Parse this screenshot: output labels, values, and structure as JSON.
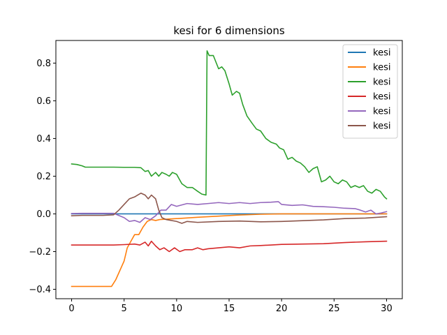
{
  "chart_data": {
    "type": "line",
    "title": "kesi for 6 dimensions",
    "xlabel": "",
    "ylabel": "",
    "xlim": [
      -1.5,
      31.5
    ],
    "ylim": [
      -0.45,
      0.92
    ],
    "xticks": [
      0,
      5,
      10,
      15,
      20,
      25,
      30
    ],
    "xtick_labels": [
      "0",
      "5",
      "10",
      "15",
      "20",
      "25",
      "30"
    ],
    "yticks": [
      -0.4,
      -0.2,
      0.0,
      0.2,
      0.4,
      0.6,
      0.8
    ],
    "ytick_labels": [
      "−0.4",
      "−0.2",
      "0.0",
      "0.2",
      "0.4",
      "0.6",
      "0.8"
    ],
    "grid": false,
    "legend_position": "top-right",
    "series": [
      {
        "name": "kesi",
        "color": "#1f77b4",
        "points": [
          [
            0,
            0.0
          ],
          [
            5,
            0.0
          ],
          [
            10,
            0.0
          ],
          [
            15,
            0.0
          ],
          [
            20,
            0.0
          ],
          [
            25,
            0.0
          ],
          [
            30,
            0.0
          ]
        ]
      },
      {
        "name": "kesi",
        "color": "#ff7f0e",
        "points": [
          [
            0,
            -0.385
          ],
          [
            1,
            -0.385
          ],
          [
            2,
            -0.385
          ],
          [
            3,
            -0.385
          ],
          [
            3.8,
            -0.385
          ],
          [
            4.2,
            -0.35
          ],
          [
            4.6,
            -0.3
          ],
          [
            5.0,
            -0.25
          ],
          [
            5.3,
            -0.18
          ],
          [
            5.7,
            -0.14
          ],
          [
            6.0,
            -0.11
          ],
          [
            6.4,
            -0.11
          ],
          [
            6.8,
            -0.07
          ],
          [
            7.2,
            -0.04
          ],
          [
            7.6,
            -0.03
          ],
          [
            8.0,
            -0.035
          ],
          [
            8.4,
            -0.03
          ],
          [
            9.0,
            -0.028
          ],
          [
            10,
            -0.025
          ],
          [
            12,
            -0.018
          ],
          [
            14,
            -0.012
          ],
          [
            16,
            -0.006
          ],
          [
            18,
            -0.002
          ],
          [
            20,
            0.0
          ],
          [
            22,
            0.0
          ],
          [
            25,
            0.0
          ],
          [
            30,
            0.0
          ]
        ]
      },
      {
        "name": "kesi",
        "color": "#2ca02c",
        "points": [
          [
            0,
            0.265
          ],
          [
            0.5,
            0.262
          ],
          [
            1,
            0.255
          ],
          [
            1.3,
            0.248
          ],
          [
            2,
            0.248
          ],
          [
            3,
            0.248
          ],
          [
            4,
            0.248
          ],
          [
            5,
            0.247
          ],
          [
            6,
            0.247
          ],
          [
            6.6,
            0.245
          ],
          [
            7.0,
            0.225
          ],
          [
            7.3,
            0.23
          ],
          [
            7.6,
            0.2
          ],
          [
            8.0,
            0.22
          ],
          [
            8.3,
            0.2
          ],
          [
            8.6,
            0.22
          ],
          [
            9.0,
            0.21
          ],
          [
            9.3,
            0.2
          ],
          [
            9.6,
            0.22
          ],
          [
            10,
            0.21
          ],
          [
            10.5,
            0.16
          ],
          [
            11,
            0.14
          ],
          [
            11.5,
            0.14
          ],
          [
            12,
            0.12
          ],
          [
            12.4,
            0.105
          ],
          [
            12.8,
            0.1
          ],
          [
            12.9,
            0.865
          ],
          [
            13.1,
            0.84
          ],
          [
            13.5,
            0.84
          ],
          [
            14.0,
            0.77
          ],
          [
            14.3,
            0.78
          ],
          [
            14.6,
            0.76
          ],
          [
            15.0,
            0.69
          ],
          [
            15.3,
            0.63
          ],
          [
            15.7,
            0.65
          ],
          [
            16.0,
            0.64
          ],
          [
            16.3,
            0.58
          ],
          [
            16.7,
            0.52
          ],
          [
            17.2,
            0.48
          ],
          [
            17.6,
            0.45
          ],
          [
            18.0,
            0.44
          ],
          [
            18.5,
            0.4
          ],
          [
            19.0,
            0.38
          ],
          [
            19.5,
            0.37
          ],
          [
            19.8,
            0.35
          ],
          [
            20.2,
            0.34
          ],
          [
            20.6,
            0.29
          ],
          [
            21.0,
            0.3
          ],
          [
            21.4,
            0.28
          ],
          [
            21.8,
            0.27
          ],
          [
            22.2,
            0.25
          ],
          [
            22.6,
            0.22
          ],
          [
            23.0,
            0.24
          ],
          [
            23.4,
            0.25
          ],
          [
            23.8,
            0.17
          ],
          [
            24.2,
            0.18
          ],
          [
            24.6,
            0.2
          ],
          [
            25.0,
            0.17
          ],
          [
            25.4,
            0.16
          ],
          [
            25.8,
            0.18
          ],
          [
            26.2,
            0.17
          ],
          [
            26.6,
            0.14
          ],
          [
            27.0,
            0.15
          ],
          [
            27.4,
            0.14
          ],
          [
            27.8,
            0.15
          ],
          [
            28.2,
            0.12
          ],
          [
            28.6,
            0.11
          ],
          [
            29.0,
            0.13
          ],
          [
            29.4,
            0.12
          ],
          [
            29.8,
            0.09
          ],
          [
            30.0,
            0.08
          ]
        ]
      },
      {
        "name": "kesi",
        "color": "#d62728",
        "points": [
          [
            0,
            -0.165
          ],
          [
            1,
            -0.165
          ],
          [
            2,
            -0.165
          ],
          [
            3,
            -0.165
          ],
          [
            4,
            -0.165
          ],
          [
            5,
            -0.163
          ],
          [
            6,
            -0.16
          ],
          [
            6.5,
            -0.165
          ],
          [
            7,
            -0.15
          ],
          [
            7.3,
            -0.17
          ],
          [
            7.6,
            -0.145
          ],
          [
            8.0,
            -0.17
          ],
          [
            8.4,
            -0.19
          ],
          [
            8.8,
            -0.18
          ],
          [
            9.3,
            -0.2
          ],
          [
            9.8,
            -0.18
          ],
          [
            10.3,
            -0.2
          ],
          [
            10.8,
            -0.19
          ],
          [
            11.5,
            -0.19
          ],
          [
            12,
            -0.18
          ],
          [
            12.5,
            -0.19
          ],
          [
            13,
            -0.185
          ],
          [
            14,
            -0.18
          ],
          [
            15,
            -0.175
          ],
          [
            16,
            -0.18
          ],
          [
            17,
            -0.17
          ],
          [
            18,
            -0.168
          ],
          [
            19,
            -0.165
          ],
          [
            20,
            -0.162
          ],
          [
            22,
            -0.16
          ],
          [
            24,
            -0.158
          ],
          [
            26,
            -0.152
          ],
          [
            28,
            -0.148
          ],
          [
            30,
            -0.145
          ]
        ]
      },
      {
        "name": "kesi",
        "color": "#9467bd",
        "points": [
          [
            0,
            0.002
          ],
          [
            1,
            0.003
          ],
          [
            2,
            0.003
          ],
          [
            3,
            0.003
          ],
          [
            4,
            0.003
          ],
          [
            5,
            -0.02
          ],
          [
            5.5,
            -0.04
          ],
          [
            6,
            -0.035
          ],
          [
            6.5,
            -0.045
          ],
          [
            7,
            -0.02
          ],
          [
            7.5,
            -0.03
          ],
          [
            8,
            -0.01
          ],
          [
            8.5,
            0.02
          ],
          [
            9,
            0.02
          ],
          [
            9.5,
            0.05
          ],
          [
            10,
            0.04
          ],
          [
            11,
            0.055
          ],
          [
            12,
            0.05
          ],
          [
            13,
            0.055
          ],
          [
            14,
            0.06
          ],
          [
            15,
            0.055
          ],
          [
            16,
            0.06
          ],
          [
            17,
            0.055
          ],
          [
            18,
            0.06
          ],
          [
            19,
            0.062
          ],
          [
            19.7,
            0.065
          ],
          [
            20,
            0.05
          ],
          [
            21,
            0.045
          ],
          [
            22,
            0.048
          ],
          [
            23,
            0.04
          ],
          [
            24,
            0.038
          ],
          [
            25,
            0.035
          ],
          [
            26,
            0.03
          ],
          [
            27,
            0.028
          ],
          [
            27.5,
            0.02
          ],
          [
            28,
            0.01
          ],
          [
            28.5,
            0.02
          ],
          [
            29,
            0.0
          ],
          [
            29.5,
            0.005
          ],
          [
            30,
            0.012
          ]
        ]
      },
      {
        "name": "kesi",
        "color": "#8c564b",
        "points": [
          [
            0,
            -0.01
          ],
          [
            1,
            -0.008
          ],
          [
            2,
            -0.008
          ],
          [
            3,
            -0.008
          ],
          [
            4,
            -0.005
          ],
          [
            4.5,
            0.02
          ],
          [
            5,
            0.05
          ],
          [
            5.5,
            0.08
          ],
          [
            6,
            0.09
          ],
          [
            6.3,
            0.1
          ],
          [
            6.6,
            0.11
          ],
          [
            7,
            0.1
          ],
          [
            7.3,
            0.08
          ],
          [
            7.6,
            0.1
          ],
          [
            8.0,
            0.08
          ],
          [
            8.3,
            0.02
          ],
          [
            8.6,
            -0.02
          ],
          [
            9,
            -0.03
          ],
          [
            10,
            -0.04
          ],
          [
            10.5,
            -0.05
          ],
          [
            11,
            -0.04
          ],
          [
            12,
            -0.045
          ],
          [
            14,
            -0.04
          ],
          [
            16,
            -0.038
          ],
          [
            18,
            -0.042
          ],
          [
            20,
            -0.04
          ],
          [
            22,
            -0.036
          ],
          [
            24,
            -0.032
          ],
          [
            26,
            -0.025
          ],
          [
            28,
            -0.022
          ],
          [
            30,
            -0.015
          ]
        ]
      }
    ]
  }
}
